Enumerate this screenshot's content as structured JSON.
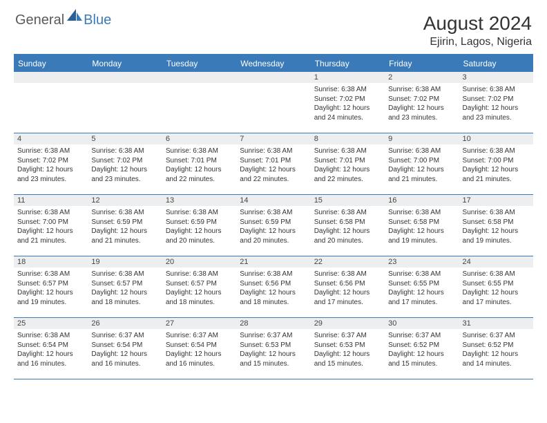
{
  "logo": {
    "textA": "General",
    "textB": "Blue"
  },
  "title": "August 2024",
  "location": "Ejirin, Lagos, Nigeria",
  "colors": {
    "accent": "#3a7ab8",
    "headerText": "#ffffff",
    "dayNumBg": "#eceeef",
    "text": "#333333",
    "logoGray": "#5a5a5a"
  },
  "weekdays": [
    "Sunday",
    "Monday",
    "Tuesday",
    "Wednesday",
    "Thursday",
    "Friday",
    "Saturday"
  ],
  "weeks": [
    [
      {
        "num": "",
        "lines": []
      },
      {
        "num": "",
        "lines": []
      },
      {
        "num": "",
        "lines": []
      },
      {
        "num": "",
        "lines": []
      },
      {
        "num": "1",
        "lines": [
          "Sunrise: 6:38 AM",
          "Sunset: 7:02 PM",
          "Daylight: 12 hours",
          "and 24 minutes."
        ]
      },
      {
        "num": "2",
        "lines": [
          "Sunrise: 6:38 AM",
          "Sunset: 7:02 PM",
          "Daylight: 12 hours",
          "and 23 minutes."
        ]
      },
      {
        "num": "3",
        "lines": [
          "Sunrise: 6:38 AM",
          "Sunset: 7:02 PM",
          "Daylight: 12 hours",
          "and 23 minutes."
        ]
      }
    ],
    [
      {
        "num": "4",
        "lines": [
          "Sunrise: 6:38 AM",
          "Sunset: 7:02 PM",
          "Daylight: 12 hours",
          "and 23 minutes."
        ]
      },
      {
        "num": "5",
        "lines": [
          "Sunrise: 6:38 AM",
          "Sunset: 7:02 PM",
          "Daylight: 12 hours",
          "and 23 minutes."
        ]
      },
      {
        "num": "6",
        "lines": [
          "Sunrise: 6:38 AM",
          "Sunset: 7:01 PM",
          "Daylight: 12 hours",
          "and 22 minutes."
        ]
      },
      {
        "num": "7",
        "lines": [
          "Sunrise: 6:38 AM",
          "Sunset: 7:01 PM",
          "Daylight: 12 hours",
          "and 22 minutes."
        ]
      },
      {
        "num": "8",
        "lines": [
          "Sunrise: 6:38 AM",
          "Sunset: 7:01 PM",
          "Daylight: 12 hours",
          "and 22 minutes."
        ]
      },
      {
        "num": "9",
        "lines": [
          "Sunrise: 6:38 AM",
          "Sunset: 7:00 PM",
          "Daylight: 12 hours",
          "and 21 minutes."
        ]
      },
      {
        "num": "10",
        "lines": [
          "Sunrise: 6:38 AM",
          "Sunset: 7:00 PM",
          "Daylight: 12 hours",
          "and 21 minutes."
        ]
      }
    ],
    [
      {
        "num": "11",
        "lines": [
          "Sunrise: 6:38 AM",
          "Sunset: 7:00 PM",
          "Daylight: 12 hours",
          "and 21 minutes."
        ]
      },
      {
        "num": "12",
        "lines": [
          "Sunrise: 6:38 AM",
          "Sunset: 6:59 PM",
          "Daylight: 12 hours",
          "and 21 minutes."
        ]
      },
      {
        "num": "13",
        "lines": [
          "Sunrise: 6:38 AM",
          "Sunset: 6:59 PM",
          "Daylight: 12 hours",
          "and 20 minutes."
        ]
      },
      {
        "num": "14",
        "lines": [
          "Sunrise: 6:38 AM",
          "Sunset: 6:59 PM",
          "Daylight: 12 hours",
          "and 20 minutes."
        ]
      },
      {
        "num": "15",
        "lines": [
          "Sunrise: 6:38 AM",
          "Sunset: 6:58 PM",
          "Daylight: 12 hours",
          "and 20 minutes."
        ]
      },
      {
        "num": "16",
        "lines": [
          "Sunrise: 6:38 AM",
          "Sunset: 6:58 PM",
          "Daylight: 12 hours",
          "and 19 minutes."
        ]
      },
      {
        "num": "17",
        "lines": [
          "Sunrise: 6:38 AM",
          "Sunset: 6:58 PM",
          "Daylight: 12 hours",
          "and 19 minutes."
        ]
      }
    ],
    [
      {
        "num": "18",
        "lines": [
          "Sunrise: 6:38 AM",
          "Sunset: 6:57 PM",
          "Daylight: 12 hours",
          "and 19 minutes."
        ]
      },
      {
        "num": "19",
        "lines": [
          "Sunrise: 6:38 AM",
          "Sunset: 6:57 PM",
          "Daylight: 12 hours",
          "and 18 minutes."
        ]
      },
      {
        "num": "20",
        "lines": [
          "Sunrise: 6:38 AM",
          "Sunset: 6:57 PM",
          "Daylight: 12 hours",
          "and 18 minutes."
        ]
      },
      {
        "num": "21",
        "lines": [
          "Sunrise: 6:38 AM",
          "Sunset: 6:56 PM",
          "Daylight: 12 hours",
          "and 18 minutes."
        ]
      },
      {
        "num": "22",
        "lines": [
          "Sunrise: 6:38 AM",
          "Sunset: 6:56 PM",
          "Daylight: 12 hours",
          "and 17 minutes."
        ]
      },
      {
        "num": "23",
        "lines": [
          "Sunrise: 6:38 AM",
          "Sunset: 6:55 PM",
          "Daylight: 12 hours",
          "and 17 minutes."
        ]
      },
      {
        "num": "24",
        "lines": [
          "Sunrise: 6:38 AM",
          "Sunset: 6:55 PM",
          "Daylight: 12 hours",
          "and 17 minutes."
        ]
      }
    ],
    [
      {
        "num": "25",
        "lines": [
          "Sunrise: 6:38 AM",
          "Sunset: 6:54 PM",
          "Daylight: 12 hours",
          "and 16 minutes."
        ]
      },
      {
        "num": "26",
        "lines": [
          "Sunrise: 6:37 AM",
          "Sunset: 6:54 PM",
          "Daylight: 12 hours",
          "and 16 minutes."
        ]
      },
      {
        "num": "27",
        "lines": [
          "Sunrise: 6:37 AM",
          "Sunset: 6:54 PM",
          "Daylight: 12 hours",
          "and 16 minutes."
        ]
      },
      {
        "num": "28",
        "lines": [
          "Sunrise: 6:37 AM",
          "Sunset: 6:53 PM",
          "Daylight: 12 hours",
          "and 15 minutes."
        ]
      },
      {
        "num": "29",
        "lines": [
          "Sunrise: 6:37 AM",
          "Sunset: 6:53 PM",
          "Daylight: 12 hours",
          "and 15 minutes."
        ]
      },
      {
        "num": "30",
        "lines": [
          "Sunrise: 6:37 AM",
          "Sunset: 6:52 PM",
          "Daylight: 12 hours",
          "and 15 minutes."
        ]
      },
      {
        "num": "31",
        "lines": [
          "Sunrise: 6:37 AM",
          "Sunset: 6:52 PM",
          "Daylight: 12 hours",
          "and 14 minutes."
        ]
      }
    ]
  ]
}
